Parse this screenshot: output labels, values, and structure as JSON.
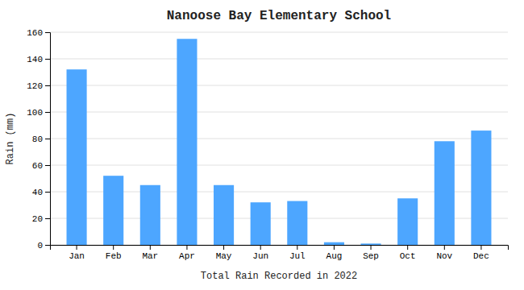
{
  "chart_data": {
    "type": "bar",
    "title": "Nanoose Bay Elementary School",
    "xlabel": "Total Rain Recorded in 2022",
    "ylabel": "Rain (mm)",
    "categories": [
      "Jan",
      "Feb",
      "Mar",
      "Apr",
      "May",
      "Jun",
      "Jul",
      "Aug",
      "Sep",
      "Oct",
      "Nov",
      "Dec"
    ],
    "values": [
      132,
      52,
      45,
      155,
      45,
      32,
      33,
      2,
      1,
      35,
      78,
      86
    ],
    "color": "#4da6ff",
    "ylim": [
      0,
      160
    ],
    "yticks": [
      0,
      20,
      40,
      60,
      80,
      100,
      120,
      140,
      160
    ],
    "grid": true
  }
}
